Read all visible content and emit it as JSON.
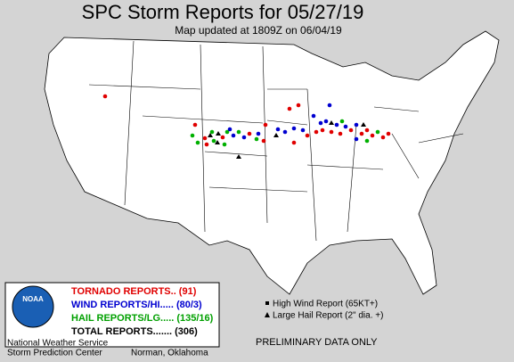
{
  "header": {
    "title": "SPC Storm Reports for 05/27/19",
    "subtitle": "Map updated at 1809Z on 06/04/19"
  },
  "legend": {
    "logo": "NOAA",
    "items": [
      "TORNADO REPORTS.. (91)",
      "WIND REPORTS/HI..... (80/3)",
      "HAIL REPORTS/LG..... (135/16)",
      "TOTAL REPORTS....... (306)"
    ]
  },
  "key": {
    "items": [
      "High Wind Report (65KT+)",
      "Large Hail Report (2\" dia. +)"
    ]
  },
  "note": "PRELIMINARY DATA ONLY",
  "agency": {
    "name": "National Weather Service",
    "center": "Storm Prediction Center",
    "location": "Norman, Oklahoma"
  }
}
